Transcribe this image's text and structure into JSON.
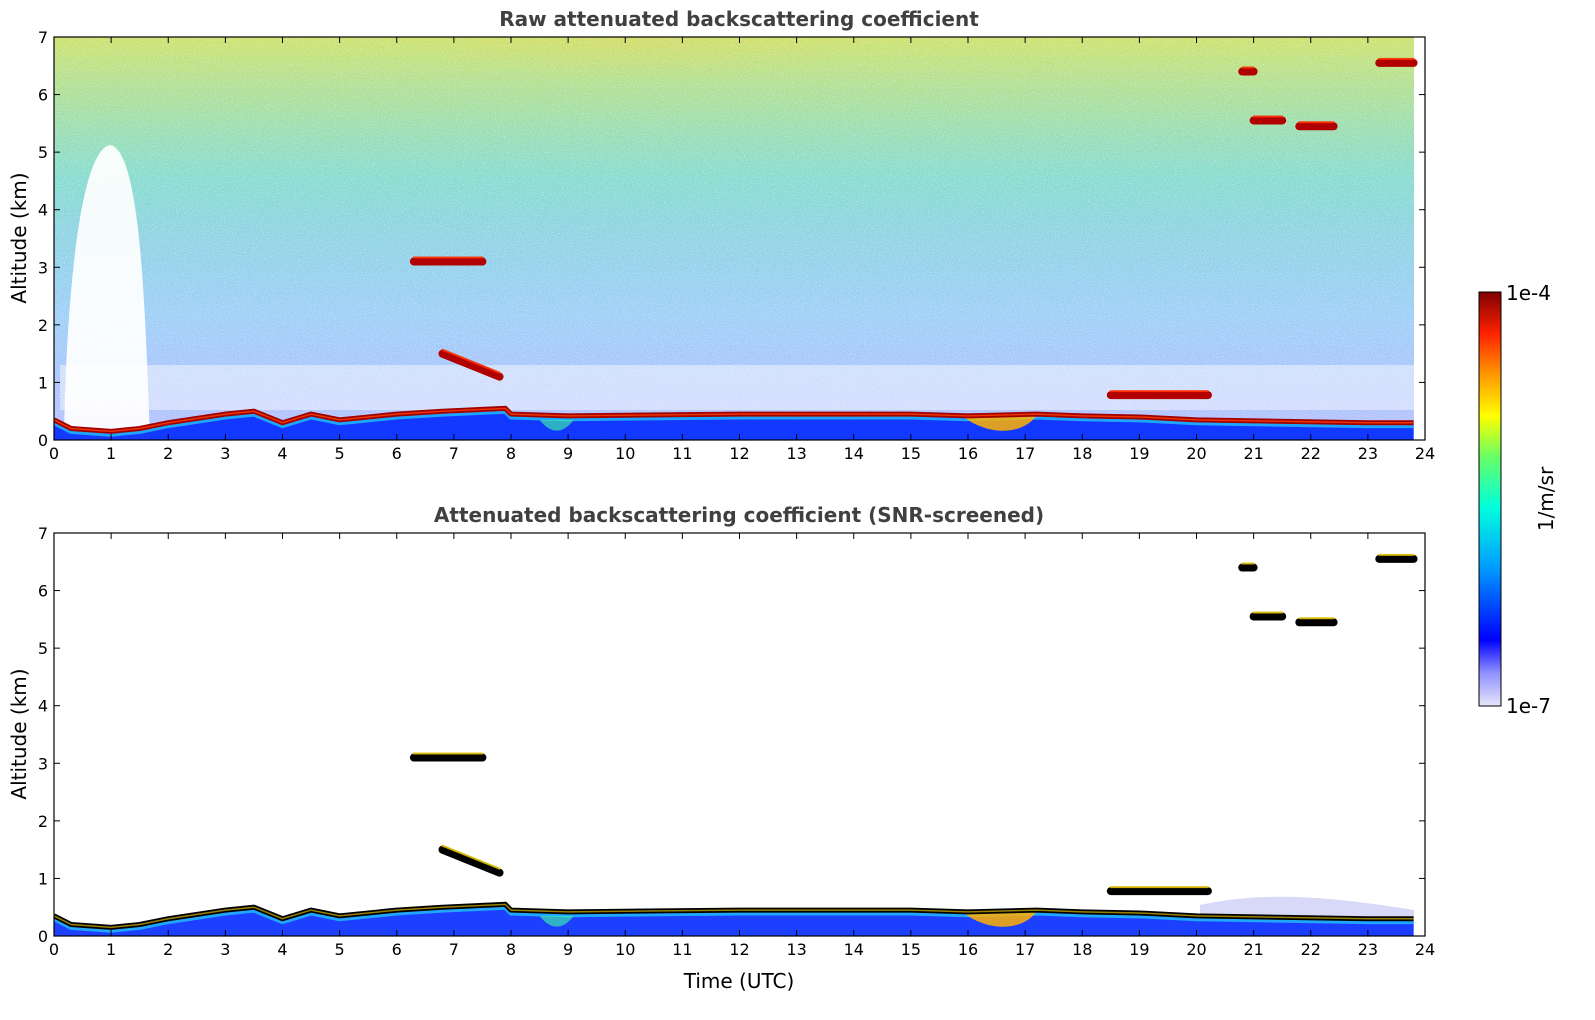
{
  "chart_data": [
    {
      "type": "heatmap",
      "id": "top",
      "title": "Raw attenuated backscattering coefficient",
      "xlabel": "",
      "ylabel": "Altitude (km)",
      "xlim": [
        0,
        24
      ],
      "ylim": [
        0,
        7
      ],
      "xticks": [
        "0",
        "1",
        "2",
        "3",
        "4",
        "5",
        "6",
        "7",
        "8",
        "9",
        "10",
        "11",
        "12",
        "13",
        "14",
        "15",
        "16",
        "17",
        "18",
        "19",
        "20",
        "21",
        "22",
        "23",
        "24"
      ],
      "yticks": [
        "0",
        "1",
        "2",
        "3",
        "4",
        "5",
        "6",
        "7"
      ],
      "layers": {
        "boundary_layer_top_km": [
          [
            0,
            0.35
          ],
          [
            0.3,
            0.2
          ],
          [
            1,
            0.15
          ],
          [
            1.5,
            0.2
          ],
          [
            2,
            0.3
          ],
          [
            3,
            0.45
          ],
          [
            3.5,
            0.5
          ],
          [
            4,
            0.3
          ],
          [
            4.5,
            0.45
          ],
          [
            5,
            0.35
          ],
          [
            6,
            0.45
          ],
          [
            6.8,
            0.5
          ],
          [
            7.9,
            0.55
          ],
          [
            8,
            0.45
          ],
          [
            9,
            0.42
          ],
          [
            12,
            0.45
          ],
          [
            15,
            0.45
          ],
          [
            16,
            0.42
          ],
          [
            17.2,
            0.45
          ],
          [
            18,
            0.42
          ],
          [
            19,
            0.4
          ],
          [
            20,
            0.35
          ],
          [
            23,
            0.3
          ],
          [
            23.8,
            0.3
          ]
        ],
        "clouds": [
          {
            "t0": 6.3,
            "t1": 7.5,
            "z": 3.1
          },
          {
            "t0": 6.8,
            "t1": 7.8,
            "z0": 1.5,
            "z1": 1.1
          },
          {
            "t0": 18.5,
            "t1": 20.2,
            "z": 0.78
          },
          {
            "t0": 21.0,
            "t1": 21.5,
            "z": 5.55
          },
          {
            "t0": 21.8,
            "t1": 22.4,
            "z": 5.45
          },
          {
            "t0": 20.8,
            "t1": 21.0,
            "z": 6.4
          },
          {
            "t0": 23.2,
            "t1": 23.8,
            "z": 6.55
          }
        ]
      }
    },
    {
      "type": "heatmap",
      "id": "bottom",
      "title": "Attenuated backscattering coefficient (SNR-screened)",
      "xlabel": "Time (UTC)",
      "ylabel": "Altitude (km)",
      "xlim": [
        0,
        24
      ],
      "ylim": [
        0,
        7
      ],
      "xticks": [
        "0",
        "1",
        "2",
        "3",
        "4",
        "5",
        "6",
        "7",
        "8",
        "9",
        "10",
        "11",
        "12",
        "13",
        "14",
        "15",
        "16",
        "17",
        "18",
        "19",
        "20",
        "21",
        "22",
        "23",
        "24"
      ],
      "yticks": [
        "0",
        "1",
        "2",
        "3",
        "4",
        "5",
        "6",
        "7"
      ]
    }
  ],
  "colorbar": {
    "label": "1/m/sr",
    "max_label": "1e-4",
    "min_label": "1e-7",
    "colors": [
      "#e6e6fa",
      "#0000ff",
      "#00a0ff",
      "#00ffdd",
      "#66ff66",
      "#ffff00",
      "#ff9900",
      "#ff2200",
      "#800000"
    ]
  }
}
